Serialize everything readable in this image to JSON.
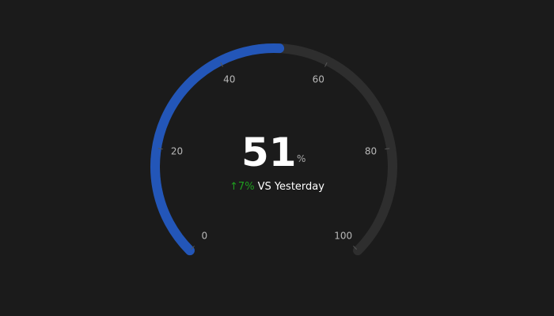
{
  "chart_data": {
    "type": "gauge",
    "min": 0,
    "max": 100,
    "value": 51,
    "value_text": "51",
    "unit": "%",
    "ticks": [
      {
        "value": 0,
        "label": "0"
      },
      {
        "value": 20,
        "label": "20"
      },
      {
        "value": 40,
        "label": "40"
      },
      {
        "value": 60,
        "label": "60"
      },
      {
        "value": 80,
        "label": "80"
      },
      {
        "value": 100,
        "label": "100"
      }
    ],
    "comparison": {
      "change": "↑7%",
      "label": "VS Yesterday"
    },
    "colors": {
      "background": "#1b1b1b",
      "progress": "#2356b8",
      "track": "#2e2e2e",
      "change_up": "#1f9e1f"
    }
  }
}
